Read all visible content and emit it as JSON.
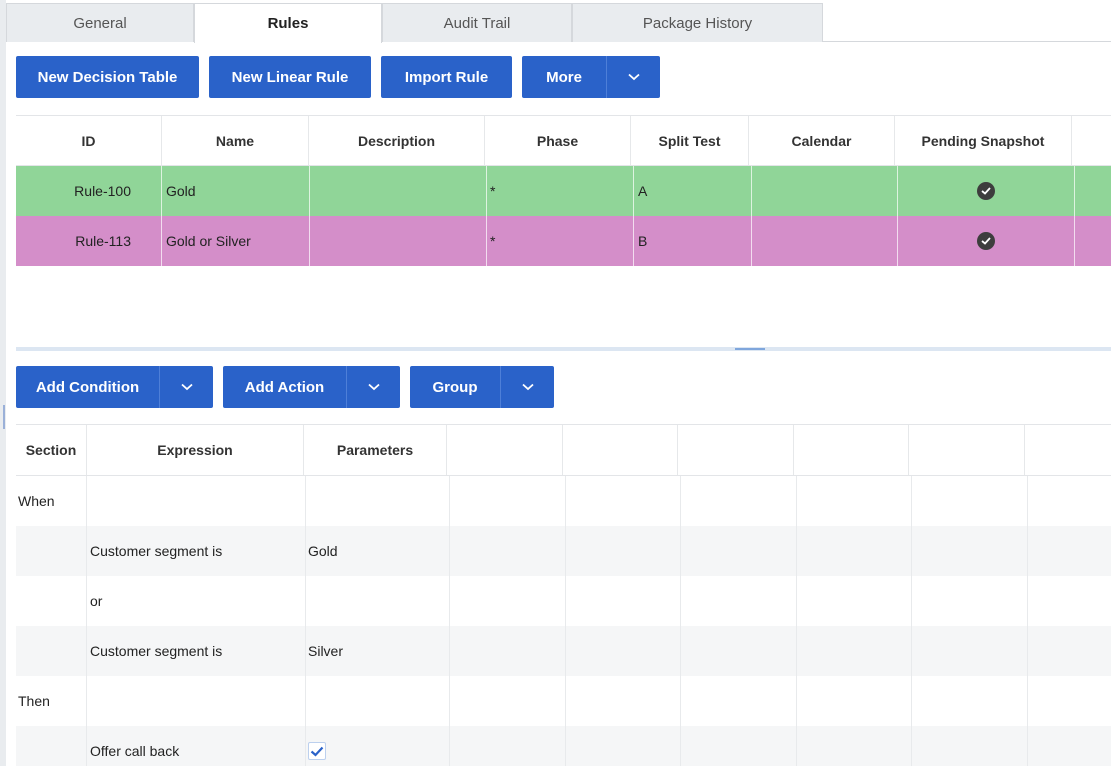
{
  "tabs": [
    {
      "label": "General",
      "active": false
    },
    {
      "label": "Rules",
      "active": true
    },
    {
      "label": "Audit Trail",
      "active": false
    },
    {
      "label": "Package History",
      "active": false
    }
  ],
  "toolbar": {
    "new_decision_table": "New Decision Table",
    "new_linear_rule": "New Linear Rule",
    "import_rule": "Import Rule",
    "more": "More"
  },
  "rules_table": {
    "columns": [
      "ID",
      "Name",
      "Description",
      "Phase",
      "Split Test",
      "Calendar",
      "Pending Snapshot"
    ],
    "rows": [
      {
        "id": "Rule-100",
        "name": "Gold",
        "description": "",
        "phase": "*",
        "split_test": "A",
        "calendar": "",
        "pending_snapshot": true,
        "color": "#90d598"
      },
      {
        "id": "Rule-113",
        "name": "Gold or Silver",
        "description": "",
        "phase": "*",
        "split_test": "B",
        "calendar": "",
        "pending_snapshot": true,
        "color": "#d48ec9"
      }
    ]
  },
  "expr_toolbar": {
    "add_condition": "Add Condition",
    "add_action": "Add Action",
    "group": "Group"
  },
  "expr_table": {
    "columns": [
      "Section",
      "Expression",
      "Parameters"
    ],
    "rows": [
      {
        "section": "When",
        "expression": "",
        "parameter": ""
      },
      {
        "section": "",
        "expression": "Customer segment is",
        "parameter": "Gold"
      },
      {
        "section": "",
        "expression": "or",
        "parameter": ""
      },
      {
        "section": "",
        "expression": "Customer segment is",
        "parameter": "Silver"
      },
      {
        "section": "Then",
        "expression": "",
        "parameter": ""
      },
      {
        "section": "",
        "expression": "Offer call back",
        "parameter": "",
        "checkbox": true
      }
    ]
  },
  "colors": {
    "accent": "#2a62c9",
    "row_green": "#90d598",
    "row_pink": "#d48ec9"
  }
}
